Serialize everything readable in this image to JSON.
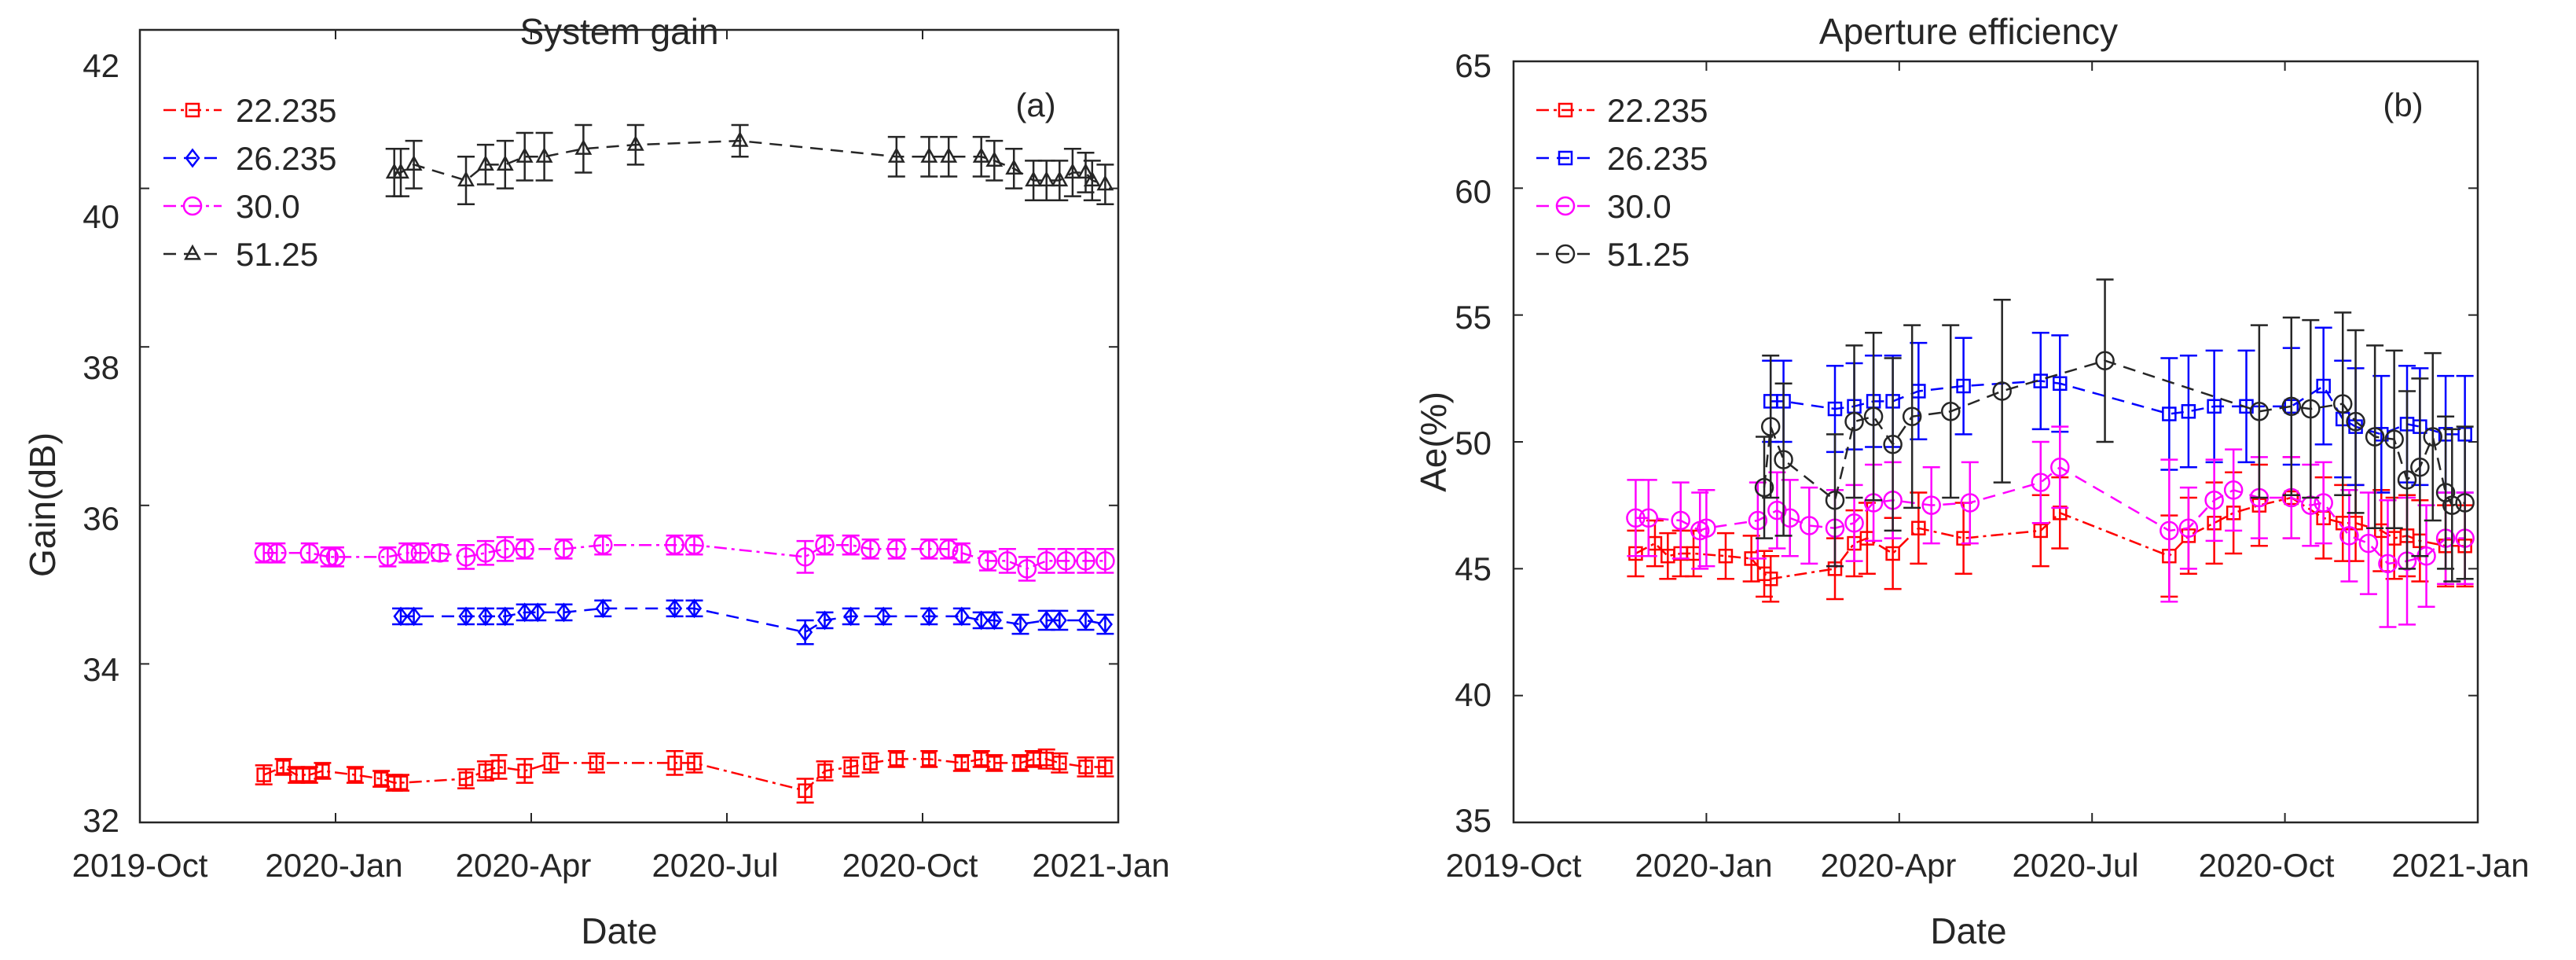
{
  "charts": [
    {
      "id": "a",
      "type": "line",
      "title": "System gain",
      "panel_label": "(a)",
      "xlabel": "Date",
      "ylabel": "Gain(dB)",
      "xlim": [
        0,
        15
      ],
      "ylim": [
        32,
        42
      ],
      "xticks": [
        0,
        3,
        6,
        9,
        12,
        15
      ],
      "xtick_labels": [
        "2019-Oct",
        "2020-Jan",
        "2020-Apr",
        "2020-Jul",
        "2020-Oct",
        "2021-Jan"
      ],
      "yticks": [
        32,
        34,
        36,
        38,
        40,
        42
      ],
      "ytick_labels": [
        "32",
        "34",
        "36",
        "38",
        "40",
        "42"
      ],
      "x_unit": "months since 2019-Oct-01",
      "series": [
        {
          "name": "22.235",
          "color": "#ff0000",
          "marker": "square",
          "dash": "16 6 4 6",
          "x": [
            1.9,
            2.2,
            2.4,
            2.6,
            2.8,
            3.3,
            3.7,
            3.9,
            4.0,
            5.0,
            5.3,
            5.5,
            5.9,
            6.3,
            7.0,
            8.2,
            8.5,
            10.2,
            10.5,
            10.9,
            11.2,
            11.6,
            12.1,
            12.6,
            12.9,
            13.1,
            13.5,
            13.7,
            13.9,
            14.1,
            14.5,
            14.8
          ],
          "y": [
            32.6,
            32.7,
            32.6,
            32.6,
            32.65,
            32.6,
            32.55,
            32.5,
            32.5,
            32.55,
            32.65,
            32.7,
            32.65,
            32.75,
            32.75,
            32.75,
            32.75,
            32.4,
            32.65,
            32.7,
            32.75,
            32.8,
            32.8,
            32.75,
            32.8,
            32.75,
            32.75,
            32.8,
            32.8,
            32.75,
            32.7,
            32.7
          ],
          "err": [
            0.12,
            0.1,
            0.1,
            0.1,
            0.1,
            0.1,
            0.1,
            0.1,
            0.1,
            0.12,
            0.12,
            0.15,
            0.15,
            0.12,
            0.12,
            0.15,
            0.12,
            0.15,
            0.12,
            0.12,
            0.12,
            0.1,
            0.1,
            0.1,
            0.1,
            0.1,
            0.1,
            0.1,
            0.12,
            0.12,
            0.12,
            0.12
          ]
        },
        {
          "name": "26.235",
          "color": "#0000ff",
          "marker": "diamond",
          "dash": "16 10",
          "x": [
            4.0,
            4.2,
            5.0,
            5.3,
            5.6,
            5.9,
            6.1,
            6.5,
            7.1,
            8.2,
            8.5,
            10.2,
            10.5,
            10.9,
            11.4,
            12.1,
            12.6,
            12.9,
            13.1,
            13.5,
            13.9,
            14.1,
            14.5,
            14.8
          ],
          "y": [
            34.6,
            34.6,
            34.6,
            34.6,
            34.6,
            34.65,
            34.65,
            34.65,
            34.7,
            34.7,
            34.7,
            34.4,
            34.55,
            34.6,
            34.6,
            34.6,
            34.6,
            34.55,
            34.55,
            34.5,
            34.55,
            34.55,
            34.55,
            34.5
          ],
          "err": [
            0.1,
            0.1,
            0.1,
            0.1,
            0.1,
            0.1,
            0.1,
            0.1,
            0.1,
            0.1,
            0.1,
            0.15,
            0.1,
            0.1,
            0.1,
            0.1,
            0.1,
            0.1,
            0.1,
            0.12,
            0.12,
            0.12,
            0.12,
            0.12
          ]
        },
        {
          "name": "30.0",
          "color": "#ff00ff",
          "marker": "circle",
          "dash": "16 6 4 6",
          "x": [
            1.9,
            2.1,
            2.6,
            2.9,
            3.0,
            3.8,
            4.1,
            4.3,
            4.6,
            5.0,
            5.3,
            5.6,
            5.9,
            6.5,
            7.1,
            8.2,
            8.5,
            10.2,
            10.5,
            10.9,
            11.2,
            11.6,
            12.1,
            12.4,
            12.6,
            13.0,
            13.3,
            13.6,
            13.9,
            14.2,
            14.5,
            14.8
          ],
          "y": [
            35.4,
            35.4,
            35.4,
            35.35,
            35.35,
            35.35,
            35.4,
            35.4,
            35.4,
            35.35,
            35.4,
            35.45,
            35.45,
            35.45,
            35.5,
            35.5,
            35.5,
            35.35,
            35.5,
            35.5,
            35.45,
            35.45,
            35.45,
            35.45,
            35.4,
            35.3,
            35.3,
            35.2,
            35.3,
            35.3,
            35.3,
            35.3
          ],
          "err": [
            0.12,
            0.12,
            0.12,
            0.12,
            0.12,
            0.12,
            0.12,
            0.12,
            0.1,
            0.15,
            0.15,
            0.15,
            0.12,
            0.12,
            0.12,
            0.12,
            0.12,
            0.2,
            0.12,
            0.12,
            0.12,
            0.12,
            0.12,
            0.12,
            0.12,
            0.12,
            0.15,
            0.15,
            0.15,
            0.15,
            0.15,
            0.15
          ]
        },
        {
          "name": "51.25",
          "color": "#262626",
          "marker": "triangle",
          "dash": "16 10",
          "x": [
            3.9,
            4.0,
            4.2,
            5.0,
            5.3,
            5.6,
            5.9,
            6.2,
            6.8,
            7.6,
            9.2,
            11.6,
            12.1,
            12.4,
            12.9,
            13.1,
            13.4,
            13.7,
            13.9,
            14.1,
            14.3,
            14.5,
            14.6,
            14.8
          ],
          "y": [
            40.2,
            40.2,
            40.3,
            40.1,
            40.3,
            40.3,
            40.4,
            40.4,
            40.5,
            40.55,
            40.6,
            40.4,
            40.4,
            40.4,
            40.4,
            40.35,
            40.25,
            40.1,
            40.1,
            40.1,
            40.2,
            40.2,
            40.1,
            40.05
          ],
          "err": [
            0.3,
            0.3,
            0.3,
            0.3,
            0.25,
            0.3,
            0.3,
            0.3,
            0.3,
            0.25,
            0.2,
            0.25,
            0.25,
            0.25,
            0.25,
            0.25,
            0.25,
            0.25,
            0.25,
            0.25,
            0.3,
            0.25,
            0.25,
            0.25
          ]
        }
      ]
    },
    {
      "id": "b",
      "type": "line",
      "title": "Aperture efficiency",
      "panel_label": "(b)",
      "xlabel": "Date",
      "ylabel": "Ae(%)",
      "xlim": [
        0,
        15
      ],
      "ylim": [
        35,
        65
      ],
      "xticks": [
        0,
        3,
        6,
        9,
        12,
        15
      ],
      "xtick_labels": [
        "2019-Oct",
        "2020-Jan",
        "2020-Apr",
        "2020-Jul",
        "2020-Oct",
        "2021-Jan"
      ],
      "yticks": [
        35,
        40,
        45,
        50,
        55,
        60,
        65
      ],
      "ytick_labels": [
        "35",
        "40",
        "45",
        "50",
        "55",
        "60",
        "65"
      ],
      "x_unit": "months since 2019-Oct-01",
      "series": [
        {
          "name": "22.235",
          "color": "#ff0000",
          "marker": "square",
          "dash": "16 6 4 6",
          "x": [
            1.9,
            2.2,
            2.4,
            2.6,
            2.8,
            3.3,
            3.7,
            3.9,
            4.0,
            5.0,
            5.3,
            5.5,
            5.9,
            6.3,
            7.0,
            8.2,
            8.5,
            10.2,
            10.5,
            10.9,
            11.2,
            11.6,
            12.1,
            12.6,
            12.9,
            13.1,
            13.5,
            13.7,
            13.9,
            14.1,
            14.5,
            14.8
          ],
          "y": [
            45.6,
            46.0,
            45.5,
            45.6,
            45.6,
            45.5,
            45.4,
            44.8,
            44.6,
            45.0,
            46.0,
            46.2,
            45.6,
            46.6,
            46.2,
            46.5,
            47.2,
            45.5,
            46.3,
            46.8,
            47.2,
            47.5,
            47.8,
            47.0,
            46.8,
            46.8,
            46.5,
            46.2,
            46.3,
            46.1,
            45.9,
            45.9
          ],
          "err": [
            0.9,
            0.9,
            0.9,
            0.9,
            0.9,
            0.9,
            0.9,
            0.9,
            0.9,
            1.2,
            1.3,
            1.4,
            1.4,
            1.4,
            1.4,
            1.4,
            1.4,
            1.6,
            1.5,
            1.6,
            1.6,
            1.6,
            1.6,
            1.6,
            1.5,
            1.5,
            1.6,
            1.6,
            1.6,
            1.6,
            1.6,
            1.6
          ]
        },
        {
          "name": "26.235",
          "color": "#0000ff",
          "marker": "square",
          "dash": "16 10",
          "x": [
            4.0,
            4.2,
            5.0,
            5.3,
            5.6,
            5.9,
            6.3,
            7.0,
            8.2,
            8.5,
            10.2,
            10.5,
            10.9,
            11.4,
            12.1,
            12.6,
            12.9,
            13.1,
            13.5,
            13.9,
            14.1,
            14.5,
            14.8
          ],
          "y": [
            51.6,
            51.6,
            51.3,
            51.4,
            51.6,
            51.6,
            52.0,
            52.2,
            52.4,
            52.3,
            51.1,
            51.2,
            51.4,
            51.4,
            51.4,
            52.2,
            50.9,
            50.6,
            50.3,
            50.7,
            50.6,
            50.3,
            50.3
          ],
          "err": [
            1.6,
            1.6,
            1.7,
            1.7,
            1.8,
            1.8,
            1.9,
            1.9,
            1.9,
            1.9,
            2.2,
            2.2,
            2.2,
            2.2,
            2.3,
            2.3,
            2.3,
            2.3,
            2.3,
            2.3,
            2.3,
            2.3,
            2.3
          ]
        },
        {
          "name": "30.0",
          "color": "#ff00ff",
          "marker": "circle",
          "dash": "16 10",
          "x": [
            1.9,
            2.1,
            2.6,
            2.9,
            3.0,
            3.8,
            4.1,
            4.3,
            4.6,
            5.0,
            5.3,
            5.6,
            5.9,
            6.5,
            7.1,
            8.2,
            8.5,
            10.2,
            10.5,
            10.9,
            11.2,
            11.6,
            12.1,
            12.4,
            12.6,
            13.0,
            13.3,
            13.6,
            13.9,
            14.2,
            14.5,
            14.8
          ],
          "y": [
            47.0,
            47.0,
            46.9,
            46.5,
            46.6,
            46.9,
            47.3,
            47.0,
            46.7,
            46.6,
            46.8,
            47.6,
            47.7,
            47.5,
            47.6,
            48.4,
            49.0,
            46.5,
            46.6,
            47.7,
            48.1,
            47.8,
            47.8,
            47.5,
            47.6,
            46.3,
            46.0,
            45.2,
            45.3,
            45.5,
            46.2,
            46.2
          ],
          "err": [
            1.5,
            1.5,
            1.5,
            1.5,
            1.5,
            1.5,
            1.5,
            1.5,
            1.5,
            1.5,
            1.5,
            1.5,
            1.5,
            1.5,
            1.6,
            1.6,
            1.6,
            2.8,
            1.6,
            1.6,
            1.6,
            1.6,
            1.6,
            1.6,
            1.6,
            1.8,
            2.0,
            2.5,
            2.5,
            2.0,
            1.8,
            1.8
          ]
        },
        {
          "name": "51.25",
          "color": "#262626",
          "marker": "circle",
          "dash": "16 10",
          "x": [
            3.9,
            4.0,
            4.2,
            5.0,
            5.3,
            5.6,
            5.9,
            6.2,
            6.8,
            7.6,
            9.2,
            11.6,
            12.1,
            12.4,
            12.9,
            13.1,
            13.4,
            13.7,
            13.9,
            14.1,
            14.3,
            14.5,
            14.6,
            14.8
          ],
          "y": [
            48.2,
            50.6,
            49.3,
            47.7,
            50.8,
            51.0,
            49.9,
            51.0,
            51.2,
            52.0,
            53.2,
            51.2,
            51.4,
            51.3,
            51.5,
            50.8,
            50.2,
            50.1,
            48.5,
            49.0,
            50.2,
            48.0,
            47.5,
            47.6
          ],
          "err": [
            2.0,
            2.8,
            3.0,
            2.6,
            3.0,
            3.3,
            3.4,
            3.6,
            3.4,
            3.6,
            3.2,
            3.4,
            3.5,
            3.5,
            3.6,
            3.6,
            3.6,
            3.5,
            3.5,
            3.5,
            3.3,
            3.0,
            3.0,
            3.0
          ]
        }
      ]
    }
  ]
}
